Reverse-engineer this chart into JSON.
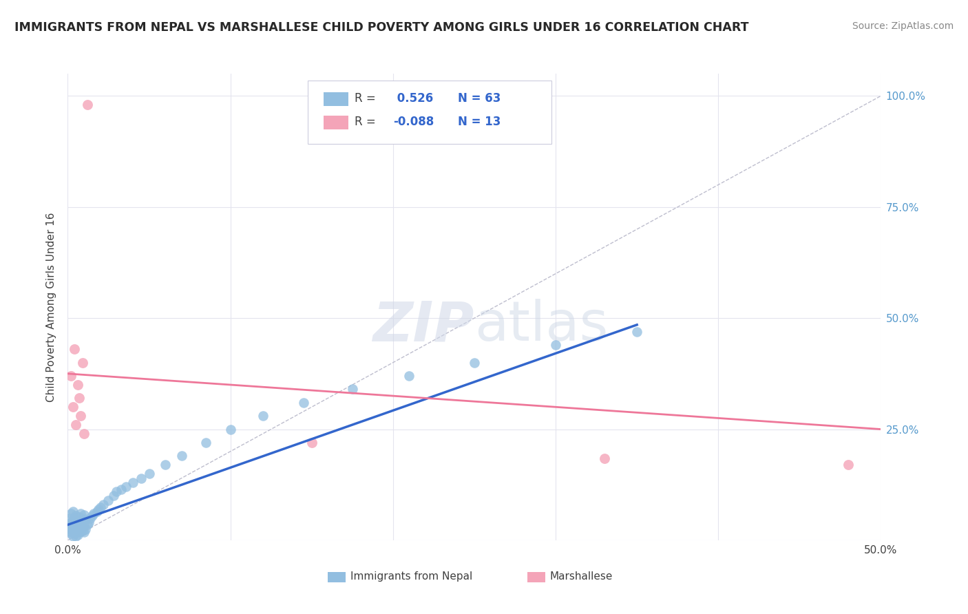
{
  "title": "IMMIGRANTS FROM NEPAL VS MARSHALLESE CHILD POVERTY AMONG GIRLS UNDER 16 CORRELATION CHART",
  "source": "Source: ZipAtlas.com",
  "ylabel": "Child Poverty Among Girls Under 16",
  "xlim": [
    0.0,
    0.5
  ],
  "ylim": [
    0.0,
    1.05
  ],
  "nepal_R": 0.526,
  "nepal_N": 63,
  "marsh_R": -0.088,
  "marsh_N": 13,
  "nepal_color": "#92BEE0",
  "marsh_color": "#F4A4B8",
  "nepal_line_color": "#3366CC",
  "marsh_line_color": "#EE7799",
  "diag_color": "#BEBECE",
  "background_color": "#FFFFFF",
  "grid_color": "#E4E4EE",
  "ytick_color": "#5599CC",
  "nepal_x": [
    0.001,
    0.001,
    0.001,
    0.002,
    0.002,
    0.002,
    0.002,
    0.003,
    0.003,
    0.003,
    0.003,
    0.003,
    0.004,
    0.004,
    0.004,
    0.005,
    0.005,
    0.005,
    0.005,
    0.006,
    0.006,
    0.006,
    0.007,
    0.007,
    0.007,
    0.008,
    0.008,
    0.008,
    0.009,
    0.009,
    0.01,
    0.01,
    0.01,
    0.011,
    0.011,
    0.012,
    0.013,
    0.014,
    0.015,
    0.016,
    0.018,
    0.019,
    0.02,
    0.022,
    0.025,
    0.028,
    0.03,
    0.033,
    0.036,
    0.04,
    0.045,
    0.05,
    0.06,
    0.07,
    0.085,
    0.1,
    0.12,
    0.145,
    0.175,
    0.21,
    0.25,
    0.3,
    0.35
  ],
  "nepal_y": [
    0.02,
    0.035,
    0.05,
    0.015,
    0.025,
    0.04,
    0.06,
    0.01,
    0.02,
    0.03,
    0.045,
    0.065,
    0.015,
    0.028,
    0.05,
    0.01,
    0.022,
    0.035,
    0.055,
    0.012,
    0.025,
    0.042,
    0.018,
    0.03,
    0.052,
    0.02,
    0.035,
    0.06,
    0.022,
    0.045,
    0.018,
    0.032,
    0.058,
    0.025,
    0.048,
    0.035,
    0.04,
    0.05,
    0.055,
    0.06,
    0.065,
    0.07,
    0.075,
    0.08,
    0.09,
    0.1,
    0.11,
    0.115,
    0.12,
    0.13,
    0.14,
    0.15,
    0.17,
    0.19,
    0.22,
    0.25,
    0.28,
    0.31,
    0.34,
    0.37,
    0.4,
    0.44,
    0.47
  ],
  "marsh_x": [
    0.002,
    0.003,
    0.004,
    0.005,
    0.006,
    0.007,
    0.008,
    0.009,
    0.01,
    0.012,
    0.15,
    0.33,
    0.48
  ],
  "marsh_y": [
    0.37,
    0.3,
    0.43,
    0.26,
    0.35,
    0.32,
    0.28,
    0.4,
    0.24,
    0.98,
    0.22,
    0.185,
    0.17
  ],
  "nepal_line_x0": 0.0,
  "nepal_line_x1": 0.35,
  "nepal_line_y0": 0.035,
  "nepal_line_y1": 0.485,
  "marsh_line_x0": 0.0,
  "marsh_line_x1": 0.5,
  "marsh_line_y0": 0.375,
  "marsh_line_y1": 0.25
}
